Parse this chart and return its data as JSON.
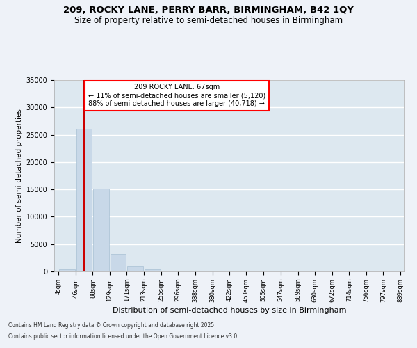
{
  "title_line1": "209, ROCKY LANE, PERRY BARR, BIRMINGHAM, B42 1QY",
  "title_line2": "Size of property relative to semi-detached houses in Birmingham",
  "xlabel": "Distribution of semi-detached houses by size in Birmingham",
  "ylabel": "Number of semi-detached properties",
  "footer_line1": "Contains HM Land Registry data © Crown copyright and database right 2025.",
  "footer_line2": "Contains public sector information licensed under the Open Government Licence v3.0.",
  "annotation_title": "209 ROCKY LANE: 67sqm",
  "annotation_line1": "← 11% of semi-detached houses are smaller (5,120)",
  "annotation_line2": "88% of semi-detached houses are larger (40,718) →",
  "property_size": 67,
  "bar_color": "#c8d8e8",
  "bar_edge_color": "#a8c0d4",
  "vline_color": "#cc0000",
  "bg_color": "#dde8f0",
  "fig_color": "#eef2f8",
  "grid_color": "#ffffff",
  "bins": [
    4,
    46,
    88,
    129,
    171,
    213,
    255,
    296,
    338,
    380,
    422,
    463,
    505,
    547,
    589,
    630,
    672,
    714,
    756,
    797,
    839
  ],
  "bin_labels": [
    "4sqm",
    "46sqm",
    "88sqm",
    "129sqm",
    "171sqm",
    "213sqm",
    "255sqm",
    "296sqm",
    "338sqm",
    "380sqm",
    "422sqm",
    "463sqm",
    "505sqm",
    "547sqm",
    "589sqm",
    "630sqm",
    "672sqm",
    "714sqm",
    "756sqm",
    "797sqm",
    "839sqm"
  ],
  "counts": [
    350,
    26100,
    15100,
    3200,
    1000,
    400,
    150,
    50,
    20,
    10,
    5,
    3,
    2,
    1,
    1,
    0,
    0,
    0,
    0,
    0
  ],
  "ylim": [
    0,
    35000
  ],
  "yticks": [
    0,
    5000,
    10000,
    15000,
    20000,
    25000,
    30000,
    35000
  ]
}
